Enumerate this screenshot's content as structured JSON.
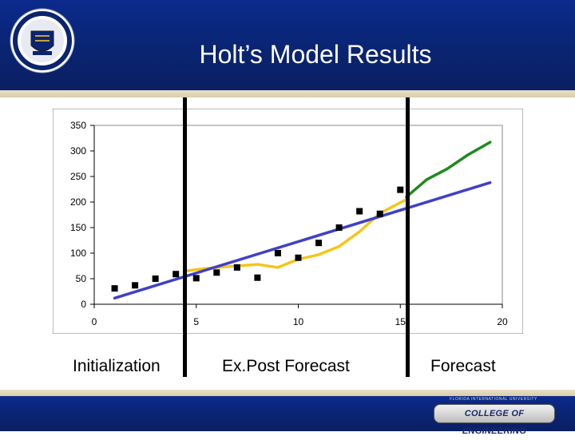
{
  "slide": {
    "title": "Holt’s Model Results",
    "labels": {
      "initialization": "Initialization",
      "expost": "Ex.Post Forecast",
      "forecast": "Forecast"
    },
    "footer": {
      "badge_top": "FLORIDA INTERNATIONAL UNIVERSITY",
      "badge": "COLLEGE OF ENGINEERING"
    }
  },
  "colors": {
    "header_blue": "#0a2470",
    "actual_marker": "#000000",
    "trend_line": "#4040c8",
    "fitted_forecast": "#f5c518",
    "future_forecast": "#1e8a1e"
  },
  "chart_data": {
    "type": "line",
    "xlim": [
      0,
      20
    ],
    "ylim": [
      0,
      350
    ],
    "xticks": [
      0,
      5,
      10,
      15,
      20
    ],
    "yticks": [
      0,
      50,
      100,
      150,
      200,
      250,
      300,
      350
    ],
    "grid": false,
    "series": [
      {
        "kind": "scatter",
        "color": "#000000",
        "x": [
          1,
          2,
          3,
          4,
          5,
          6,
          7,
          8,
          9,
          10,
          11,
          12,
          13,
          14,
          15
        ],
        "values": [
          31,
          37,
          50,
          59,
          51,
          62,
          72,
          52,
          100,
          91,
          120,
          150,
          182,
          177,
          224
        ]
      },
      {
        "kind": "line",
        "color": "#f5c518",
        "x": [
          4.5,
          5,
          6,
          7,
          8,
          9,
          10,
          11,
          12,
          13,
          14,
          15.3
        ],
        "values": [
          65,
          68,
          72,
          75,
          78,
          72,
          88,
          97,
          113,
          142,
          178,
          205
        ]
      },
      {
        "kind": "line",
        "color": "#1e8a1e",
        "x": [
          15.3,
          16.3,
          17.3,
          18.3,
          19.4
        ],
        "values": [
          210,
          244,
          265,
          292,
          317
        ]
      },
      {
        "kind": "line",
        "color": "#4040c8",
        "x": [
          1,
          19.4
        ],
        "values": [
          12,
          238
        ]
      }
    ]
  }
}
